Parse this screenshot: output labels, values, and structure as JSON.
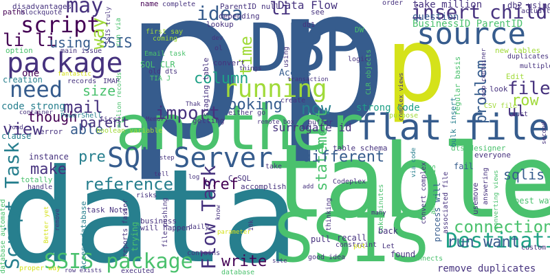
{
  "palette": [
    "#440154",
    "#46327e",
    "#365c8d",
    "#277f8e",
    "#1fa187",
    "#4ac16d",
    "#a0da39",
    "#d5e21a"
  ],
  "words": [
    {
      "text": "p",
      "color": "#365c8d"
    },
    {
      "text": "p",
      "color": "#365c8d"
    },
    {
      "text": "p",
      "color": "#d5e21a"
    },
    {
      "text": "data",
      "color": "#277f8e"
    },
    {
      "text": "table",
      "color": "#4ac16d"
    },
    {
      "text": "another",
      "color": "#4ac16d"
    },
    {
      "text": "DBP",
      "color": "#365c8d"
    },
    {
      "text": "SSIS",
      "color": "#4ac16d"
    },
    {
      "text": "flat file",
      "color": "#365c8d"
    },
    {
      "text": "source",
      "color": "#365c8d"
    },
    {
      "text": "SQL Server",
      "color": "#365c8d"
    },
    {
      "text": "running",
      "color": "#a0da39"
    },
    {
      "text": "package",
      "color": "#46327e"
    },
    {
      "text": "need",
      "color": "#365c8d"
    },
    {
      "text": "script",
      "color": "#440154"
    },
    {
      "text": "SSIS package",
      "color": "#4ac16d"
    },
    {
      "text": "Destination",
      "color": "#1fa187"
    },
    {
      "text": "idea",
      "color": "#365c8d"
    },
    {
      "text": "insert",
      "color": "#46327e"
    },
    {
      "text": "child",
      "color": "#46327e"
    },
    {
      "text": "Flow Task",
      "color": "#46327e"
    },
    {
      "text": "Script Task",
      "color": "#277f8e"
    },
    {
      "text": "connection",
      "color": "#4ac16d"
    },
    {
      "text": "run want",
      "color": "#365c8d"
    },
    {
      "text": "import",
      "color": "#46327e"
    },
    {
      "text": "reference",
      "color": "#277f8e"
    },
    {
      "text": "view",
      "color": "#46327e"
    },
    {
      "text": "mail",
      "color": "#46327e"
    },
    {
      "text": "li li",
      "color": "#440154"
    },
    {
      "text": "using SSIS",
      "color": "#365c8d"
    },
    {
      "text": "may",
      "color": "#46327e"
    },
    {
      "text": "way",
      "color": "#a0da39"
    },
    {
      "text": "li",
      "color": "#46327e"
    },
    {
      "text": "time",
      "color": "#a0da39"
    },
    {
      "text": "column",
      "color": "#1fa187"
    },
    {
      "text": "now",
      "color": "#277f8e"
    },
    {
      "text": "file",
      "color": "#46327e"
    },
    {
      "text": "row",
      "color": "#a0da39"
    },
    {
      "text": "ul",
      "color": "#46327e"
    },
    {
      "text": "problem",
      "color": "#365c8d"
    },
    {
      "text": "statement",
      "color": "#4ac16d"
    },
    {
      "text": "looking",
      "color": "#365c8d"
    },
    {
      "text": "size",
      "color": "#4ac16d"
    },
    {
      "text": "able",
      "color": "#365c8d"
    },
    {
      "text": "though",
      "color": "#440154"
    },
    {
      "text": "parent",
      "color": "#46327e"
    },
    {
      "text": "pre",
      "color": "#277f8e"
    },
    {
      "text": "make",
      "color": "#46327e"
    },
    {
      "text": "href",
      "color": "#440154"
    },
    {
      "text": "write",
      "color": "#440154"
    },
    {
      "text": "different",
      "color": "#365c8d"
    },
    {
      "text": "sqlis",
      "color": "#365c8d"
    },
    {
      "text": "strong code",
      "color": "#1fa187"
    },
    {
      "text": "remove duplicates",
      "color": "#46327e"
    },
    {
      "text": "code strong",
      "color": "#277f8e"
    },
    {
      "text": "surrogate id",
      "color": "#46327e"
    },
    {
      "text": "Data Flow",
      "color": "#46327e"
    },
    {
      "text": "take million",
      "color": "#46327e"
    },
    {
      "text": "BusinessID ParentID",
      "color": "#4ac16d"
    },
    {
      "text": "question",
      "color": "#365c8d"
    },
    {
      "text": "db2 using",
      "color": "#46327e"
    },
    {
      "text": "duplicates",
      "color": "#46327e"
    },
    {
      "text": "ParentID",
      "color": "#46327e"
    },
    {
      "text": "null",
      "color": "#46327e"
    },
    {
      "text": "depending",
      "color": "#46327e"
    },
    {
      "text": "name",
      "color": "#440154"
    },
    {
      "text": "complete",
      "color": "#46327e"
    },
    {
      "text": "order",
      "color": "#46327e"
    },
    {
      "text": "actually",
      "color": "#46327e"
    },
    {
      "text": "paths",
      "color": "#440154"
    },
    {
      "text": "disadvantages",
      "color": "#46327e"
    },
    {
      "text": "blockquote",
      "color": "#46327e"
    },
    {
      "text": "option",
      "color": "#4ac16d"
    },
    {
      "text": "main issue",
      "color": "#46327e"
    },
    {
      "text": "one",
      "color": "#440154"
    },
    {
      "text": "creation",
      "color": "#277f8e"
    },
    {
      "text": "records",
      "color": "#46327e"
    },
    {
      "text": "IMAP",
      "color": "#46327e"
    },
    {
      "text": "SQL CLR",
      "color": "#4ac16d"
    },
    {
      "text": "old dts",
      "color": "#46327e"
    },
    {
      "text": "TIA J",
      "color": "#4ac16d"
    },
    {
      "text": "Email task",
      "color": "#4ac16d"
    },
    {
      "text": "first say",
      "color": "#a0da39"
    },
    {
      "text": "coming",
      "color": "#a0da39"
    },
    {
      "text": "lookup",
      "color": "#46327e"
    },
    {
      "text": "convert",
      "color": "#46327e"
    },
    {
      "text": "Access",
      "color": "#365c8d"
    },
    {
      "text": "transaction",
      "color": "#46327e"
    },
    {
      "text": "things",
      "color": "#46327e"
    },
    {
      "text": "staging table",
      "color": "#46327e"
    },
    {
      "text": "dev",
      "color": "#46327e"
    },
    {
      "text": "ol",
      "color": "#46327e"
    },
    {
      "text": "using",
      "color": "#46327e"
    },
    {
      "text": "db1",
      "color": "#46327e"
    },
    {
      "text": "DW",
      "color": "#4ac16d"
    },
    {
      "text": "CLR objects",
      "color": "#4ac16d"
    },
    {
      "text": "logic",
      "color": "#46327e"
    },
    {
      "text": "complex views",
      "color": "#46327e"
    },
    {
      "text": "regular basis",
      "color": "#4ac16d"
    },
    {
      "text": "bulk insert",
      "color": "#277f8e"
    },
    {
      "text": "new tables",
      "color": "#a0da39"
    },
    {
      "text": "Edit",
      "color": "#a0da39"
    },
    {
      "text": "look",
      "color": "#46327e"
    },
    {
      "text": "multiple",
      "color": "#46327e"
    },
    {
      "text": "CSV file",
      "color": "#a0da39"
    },
    {
      "text": "must",
      "color": "#46327e"
    },
    {
      "text": "PowerShell",
      "color": "#277f8e"
    },
    {
      "text": "container",
      "color": "#46327e"
    },
    {
      "text": "load",
      "color": "#46327e"
    },
    {
      "text": "clause",
      "color": "#277f8e"
    },
    {
      "text": "error",
      "color": "#46327e"
    },
    {
      "text": "first",
      "color": "#46327e"
    },
    {
      "text": "Memory",
      "color": "#46327e"
    },
    {
      "text": "boolean variable",
      "color": "#a0da39"
    },
    {
      "text": "Thak",
      "color": "#46327e"
    },
    {
      "text": "getting",
      "color": "#46327e"
    },
    {
      "text": "either go",
      "color": "#46327e"
    },
    {
      "text": "remote box",
      "color": "#46327e"
    },
    {
      "text": "buffer",
      "color": "#46327e"
    },
    {
      "text": "create",
      "color": "#46327e"
    },
    {
      "text": "purpose",
      "color": "#a0da39"
    },
    {
      "text": "see",
      "color": "#46327e"
    },
    {
      "text": "instance",
      "color": "#46327e"
    },
    {
      "text": "totally",
      "color": "#4ac16d"
    },
    {
      "text": "handle",
      "color": "#46327e"
    },
    {
      "text": "step",
      "color": "#46327e"
    },
    {
      "text": "tell",
      "color": "#46327e"
    },
    {
      "text": "table schema",
      "color": "#46327e"
    },
    {
      "text": "dts designer",
      "color": "#4ac16d"
    },
    {
      "text": "C SQL",
      "color": "#46327e"
    },
    {
      "text": "accomplish",
      "color": "#46327e"
    },
    {
      "text": "Codeplex",
      "color": "#46327e"
    },
    {
      "text": "take",
      "color": "#46327e"
    },
    {
      "text": "log",
      "color": "#46327e"
    },
    {
      "text": "add",
      "color": "#46327e"
    },
    {
      "text": "thinking",
      "color": "#46327e"
    },
    {
      "text": "take minutes",
      "color": "#4ac16d"
    },
    {
      "text": "fail",
      "color": "#365c8d"
    },
    {
      "text": "everyone",
      "color": "#46327e"
    },
    {
      "text": "answering",
      "color": "#46327e"
    },
    {
      "text": "convert complex",
      "color": "#46327e"
    },
    {
      "text": "usemove",
      "color": "#46327e"
    },
    {
      "text": "best way",
      "color": "#4ac16d"
    },
    {
      "text": "Access database",
      "color": "#277f8e"
    },
    {
      "text": "task Note",
      "color": "#46327e"
    },
    {
      "text": "risks",
      "color": "#46327e"
    },
    {
      "text": "business",
      "color": "#46327e"
    },
    {
      "text": "parameter",
      "color": "#d5e21a"
    },
    {
      "text": "will happen",
      "color": "#46327e"
    },
    {
      "text": "reports faster",
      "color": "#46327e"
    },
    {
      "text": "trying",
      "color": "#4ac16d"
    },
    {
      "text": "file pushing",
      "color": "#46327e"
    },
    {
      "text": "daily",
      "color": "#46327e"
    },
    {
      "text": "contains",
      "color": "#46327e"
    },
    {
      "text": "pull",
      "color": "#46327e"
    },
    {
      "text": "recall",
      "color": "#46327e"
    },
    {
      "text": "constraint",
      "color": "#46327e"
    },
    {
      "text": "back",
      "color": "#46327e"
    },
    {
      "text": "Let",
      "color": "#46327e"
    },
    {
      "text": "found",
      "color": "#46327e"
    },
    {
      "text": "connects",
      "color": "#4ac16d"
    },
    {
      "text": "good idea",
      "color": "#46327e"
    },
    {
      "text": "put",
      "color": "#d5e21a"
    },
    {
      "text": "database",
      "color": "#4ac16d"
    },
    {
      "text": "executed",
      "color": "#46327e"
    },
    {
      "text": "proper way",
      "color": "#d5e21a"
    },
    {
      "text": "row exists",
      "color": "#46327e"
    },
    {
      "text": "site",
      "color": "#46327e"
    },
    {
      "text": "Better yet",
      "color": "#d5e21a"
    },
    {
      "text": "remove",
      "color": "#46327e"
    },
    {
      "text": "database automated",
      "color": "#4ac16d"
    },
    {
      "text": "custom",
      "color": "#46327e"
    },
    {
      "text": "many",
      "color": "#46327e"
    },
    {
      "text": "process will",
      "color": "#365c8d"
    },
    {
      "text": "amazing SSIS",
      "color": "#4ac16d"
    },
    {
      "text": "converting views",
      "color": "#4ac16d"
    },
    {
      "text": "associated file",
      "color": "#46327e"
    },
    {
      "text": "via code",
      "color": "#277f8e"
    },
    {
      "text": "10k",
      "color": "#46327e"
    },
    {
      "text": "know",
      "color": "#46327e"
    },
    {
      "text": "million records",
      "color": "#4ac16d"
    },
    {
      "text": "fantastic",
      "color": "#d5e21a"
    },
    {
      "text": "run via",
      "color": "#4ac16d"
    },
    {
      "text": "SSIS truly",
      "color": "#46327e"
    },
    {
      "text": "loop container",
      "color": "#46327e"
    },
    {
      "text": "second",
      "color": "#46327e"
    }
  ]
}
